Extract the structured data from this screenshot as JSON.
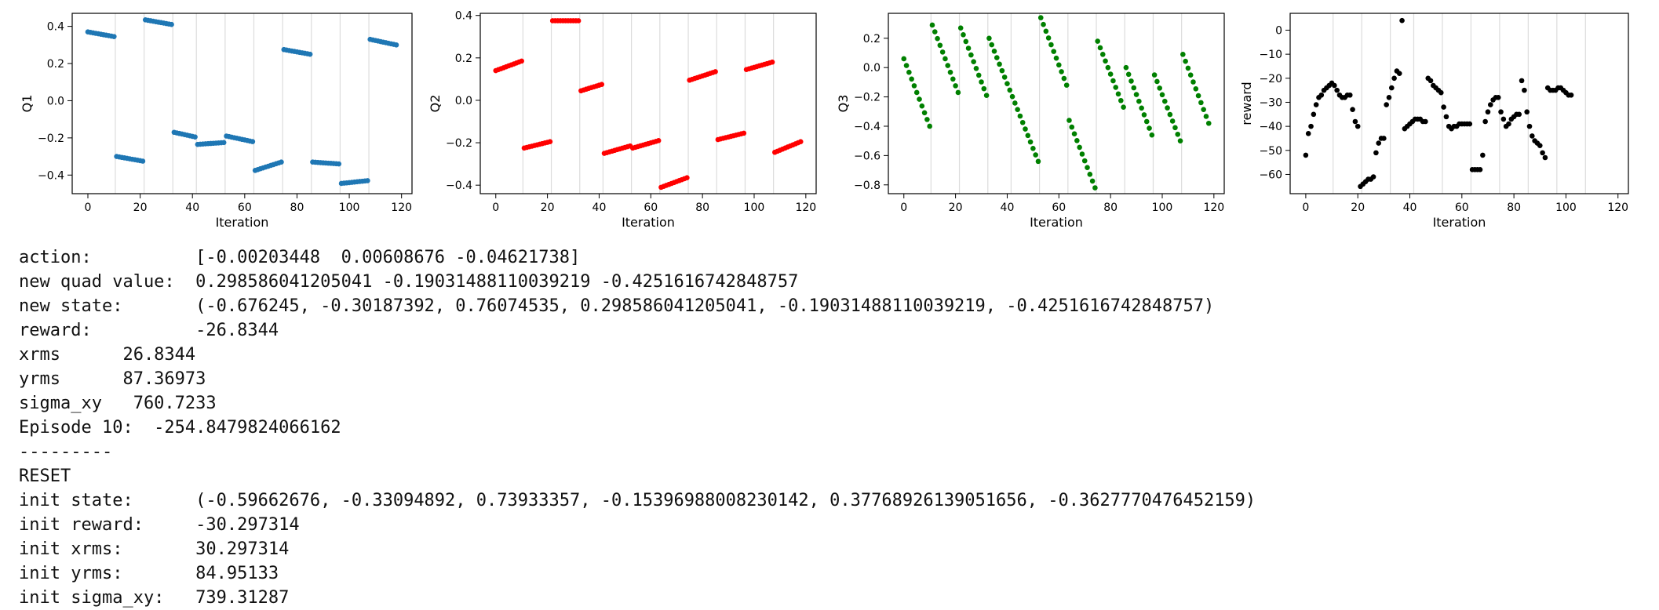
{
  "charts": [
    {
      "ylabel": "Q1",
      "xlabel": "Iteration",
      "color": "#1f77b4",
      "xlim": [
        -6,
        124
      ],
      "ylim": [
        -0.5,
        0.47
      ],
      "xticks": [
        0,
        20,
        40,
        60,
        80,
        100,
        120
      ],
      "yticks": [
        0.4,
        0.2,
        0.0,
        -0.2,
        -0.4
      ],
      "ytick_labels": [
        "0.4",
        "0.2",
        "0.0",
        "−0.2",
        "−0.4"
      ],
      "episode_lines": [
        10.5,
        21.5,
        32.5,
        41.5,
        52.5,
        63.5,
        74.5,
        85.5,
        96.5,
        107.5
      ],
      "segments": [
        {
          "x0": 0,
          "x1": 10,
          "y0": 0.37,
          "y1": 0.345
        },
        {
          "x0": 11,
          "x1": 21,
          "y0": -0.3,
          "y1": -0.325
        },
        {
          "x0": 22,
          "x1": 32,
          "y0": 0.435,
          "y1": 0.41
        },
        {
          "x0": 33,
          "x1": 41,
          "y0": -0.17,
          "y1": -0.195
        },
        {
          "x0": 42,
          "x1": 52,
          "y0": -0.235,
          "y1": -0.225
        },
        {
          "x0": 53,
          "x1": 63,
          "y0": -0.19,
          "y1": -0.22
        },
        {
          "x0": 64,
          "x1": 74,
          "y0": -0.375,
          "y1": -0.33
        },
        {
          "x0": 75,
          "x1": 85,
          "y0": 0.275,
          "y1": 0.25
        },
        {
          "x0": 86,
          "x1": 96,
          "y0": -0.33,
          "y1": -0.34
        },
        {
          "x0": 97,
          "x1": 107,
          "y0": -0.445,
          "y1": -0.43
        },
        {
          "x0": 108,
          "x1": 118,
          "y0": 0.33,
          "y1": 0.3
        }
      ]
    },
    {
      "ylabel": "Q2",
      "xlabel": "Iteration",
      "color": "#ff0000",
      "xlim": [
        -6,
        124
      ],
      "ylim": [
        -0.44,
        0.41
      ],
      "xticks": [
        0,
        20,
        40,
        60,
        80,
        100,
        120
      ],
      "yticks": [
        0.4,
        0.2,
        0.0,
        -0.2,
        -0.4
      ],
      "ytick_labels": [
        "0.4",
        "0.2",
        "0.0",
        "−0.2",
        "−0.4"
      ],
      "episode_lines": [
        10.5,
        21.5,
        32.5,
        41.5,
        52.5,
        63.5,
        74.5,
        85.5,
        96.5,
        107.5
      ],
      "segments": [
        {
          "x0": 0,
          "x1": 10,
          "y0": 0.14,
          "y1": 0.185
        },
        {
          "x0": 11,
          "x1": 21,
          "y0": -0.225,
          "y1": -0.195
        },
        {
          "x0": 22,
          "x1": 32,
          "y0": 0.375,
          "y1": 0.375
        },
        {
          "x0": 33,
          "x1": 41,
          "y0": 0.045,
          "y1": 0.075
        },
        {
          "x0": 42,
          "x1": 52,
          "y0": -0.25,
          "y1": -0.215
        },
        {
          "x0": 53,
          "x1": 63,
          "y0": -0.225,
          "y1": -0.19
        },
        {
          "x0": 64,
          "x1": 74,
          "y0": -0.41,
          "y1": -0.365
        },
        {
          "x0": 75,
          "x1": 85,
          "y0": 0.095,
          "y1": 0.135
        },
        {
          "x0": 86,
          "x1": 96,
          "y0": -0.185,
          "y1": -0.155
        },
        {
          "x0": 97,
          "x1": 107,
          "y0": 0.145,
          "y1": 0.18
        },
        {
          "x0": 108,
          "x1": 118,
          "y0": -0.245,
          "y1": -0.195
        }
      ]
    },
    {
      "ylabel": "Q3",
      "xlabel": "Iteration",
      "color": "#008000",
      "xlim": [
        -6,
        124
      ],
      "ylim": [
        -0.86,
        0.37
      ],
      "xticks": [
        0,
        20,
        40,
        60,
        80,
        100,
        120
      ],
      "yticks": [
        0.2,
        0.0,
        -0.2,
        -0.4,
        -0.6,
        -0.8
      ],
      "ytick_labels": [
        "0.2",
        "0.0",
        "−0.2",
        "−0.4",
        "−0.6",
        "−0.8"
      ],
      "episode_lines": [
        10.5,
        21.5,
        32.5,
        41.5,
        52.5,
        63.5,
        74.5,
        85.5,
        96.5,
        107.5
      ],
      "segments": [
        {
          "x0": 0,
          "x1": 10,
          "y0": 0.06,
          "y1": -0.4
        },
        {
          "x0": 11,
          "x1": 21,
          "y0": 0.29,
          "y1": -0.17
        },
        {
          "x0": 22,
          "x1": 32,
          "y0": 0.27,
          "y1": -0.19
        },
        {
          "x0": 33,
          "x1": 52,
          "y0": 0.2,
          "y1": -0.64
        },
        {
          "x0": 53,
          "x1": 63,
          "y0": 0.34,
          "y1": -0.12
        },
        {
          "x0": 64,
          "x1": 74,
          "y0": -0.36,
          "y1": -0.82
        },
        {
          "x0": 75,
          "x1": 85,
          "y0": 0.18,
          "y1": -0.27
        },
        {
          "x0": 86,
          "x1": 96,
          "y0": 0.0,
          "y1": -0.46
        },
        {
          "x0": 97,
          "x1": 107,
          "y0": -0.05,
          "y1": -0.5
        },
        {
          "x0": 108,
          "x1": 118,
          "y0": 0.09,
          "y1": -0.38
        }
      ]
    },
    {
      "ylabel": "reward",
      "xlabel": "Iteration",
      "color": "#000000",
      "xlim": [
        -6,
        124
      ],
      "ylim": [
        -68,
        7
      ],
      "xticks": [
        0,
        20,
        40,
        60,
        80,
        100,
        120
      ],
      "yticks": [
        0,
        -10,
        -20,
        -30,
        -40,
        -50,
        -60
      ],
      "ytick_labels": [
        "0",
        "−10",
        "−20",
        "−30",
        "−40",
        "−50",
        "−60"
      ],
      "episode_lines": [
        10.5,
        21.5,
        32.5,
        41.5,
        52.5,
        63.5,
        74.5,
        85.5,
        96.5,
        107.5
      ],
      "points": [
        [
          0,
          -52
        ],
        [
          1,
          -43
        ],
        [
          2,
          -40
        ],
        [
          3,
          -35
        ],
        [
          4,
          -31
        ],
        [
          5,
          -28
        ],
        [
          6,
          -27
        ],
        [
          7,
          -25
        ],
        [
          8,
          -24
        ],
        [
          9,
          -23
        ],
        [
          10,
          -22
        ],
        [
          11,
          -23
        ],
        [
          12,
          -25
        ],
        [
          13,
          -27
        ],
        [
          14,
          -28
        ],
        [
          15,
          -28
        ],
        [
          16,
          -27
        ],
        [
          17,
          -27
        ],
        [
          18,
          -33
        ],
        [
          19,
          -38
        ],
        [
          20,
          -40
        ],
        [
          21,
          -65
        ],
        [
          22,
          -64
        ],
        [
          23,
          -63
        ],
        [
          24,
          -62
        ],
        [
          25,
          -62
        ],
        [
          26,
          -61
        ],
        [
          27,
          -51
        ],
        [
          28,
          -47
        ],
        [
          29,
          -45
        ],
        [
          30,
          -45
        ],
        [
          31,
          -31
        ],
        [
          32,
          -28
        ],
        [
          33,
          -24
        ],
        [
          34,
          -20
        ],
        [
          35,
          -17
        ],
        [
          36,
          -18
        ],
        [
          37,
          4
        ],
        [
          38,
          -41
        ],
        [
          39,
          -40
        ],
        [
          40,
          -39
        ],
        [
          41,
          -38
        ],
        [
          42,
          -37
        ],
        [
          43,
          -37
        ],
        [
          44,
          -37
        ],
        [
          45,
          -38
        ],
        [
          46,
          -38
        ],
        [
          47,
          -20
        ],
        [
          48,
          -21
        ],
        [
          49,
          -23
        ],
        [
          50,
          -24
        ],
        [
          51,
          -25
        ],
        [
          52,
          -26
        ],
        [
          53,
          -32
        ],
        [
          54,
          -36
        ],
        [
          55,
          -40
        ],
        [
          56,
          -41
        ],
        [
          57,
          -40
        ],
        [
          58,
          -40
        ],
        [
          59,
          -39
        ],
        [
          60,
          -39
        ],
        [
          61,
          -39
        ],
        [
          62,
          -39
        ],
        [
          63,
          -39
        ],
        [
          64,
          -58
        ],
        [
          65,
          -58
        ],
        [
          66,
          -58
        ],
        [
          67,
          -58
        ],
        [
          68,
          -52
        ],
        [
          69,
          -38
        ],
        [
          70,
          -34
        ],
        [
          71,
          -31
        ],
        [
          72,
          -29
        ],
        [
          73,
          -28
        ],
        [
          74,
          -28
        ],
        [
          75,
          -34
        ],
        [
          76,
          -37
        ],
        [
          77,
          -40
        ],
        [
          78,
          -39
        ],
        [
          79,
          -37
        ],
        [
          80,
          -36
        ],
        [
          81,
          -35
        ],
        [
          82,
          -35
        ],
        [
          83,
          -21
        ],
        [
          84,
          -25
        ],
        [
          85,
          -34
        ],
        [
          86,
          -40
        ],
        [
          87,
          -44
        ],
        [
          88,
          -46
        ],
        [
          89,
          -47
        ],
        [
          90,
          -48
        ],
        [
          91,
          -51
        ],
        [
          92,
          -53
        ],
        [
          93,
          -24
        ],
        [
          94,
          -25
        ],
        [
          95,
          -25
        ],
        [
          96,
          -25
        ],
        [
          97,
          -24
        ],
        [
          98,
          -24
        ],
        [
          99,
          -25
        ],
        [
          100,
          -26
        ],
        [
          101,
          -27
        ],
        [
          102,
          -27
        ]
      ]
    }
  ],
  "console": {
    "lines": [
      "action:          [-0.00203448  0.00608676 -0.04621738]",
      "new quad value:  0.298586041205041 -0.19031488110039219 -0.4251616742848757",
      "new state:       (-0.676245, -0.30187392, 0.76074535, 0.298586041205041, -0.19031488110039219, -0.4251616742848757)",
      "reward:          -26.8344",
      "xrms      26.8344",
      "yrms      87.36973",
      "sigma_xy   760.7233",
      "Episode 10:  -254.8479824066162",
      "---------",
      "RESET",
      "init state:      (-0.59662676, -0.33094892, 0.73933357, -0.15396988008230142, 0.37768926139051656, -0.3627770476452159)",
      "init reward:     -30.297314",
      "init xrms:       30.297314",
      "init yrms:       84.95133",
      "init sigma_xy:   739.31287"
    ]
  }
}
